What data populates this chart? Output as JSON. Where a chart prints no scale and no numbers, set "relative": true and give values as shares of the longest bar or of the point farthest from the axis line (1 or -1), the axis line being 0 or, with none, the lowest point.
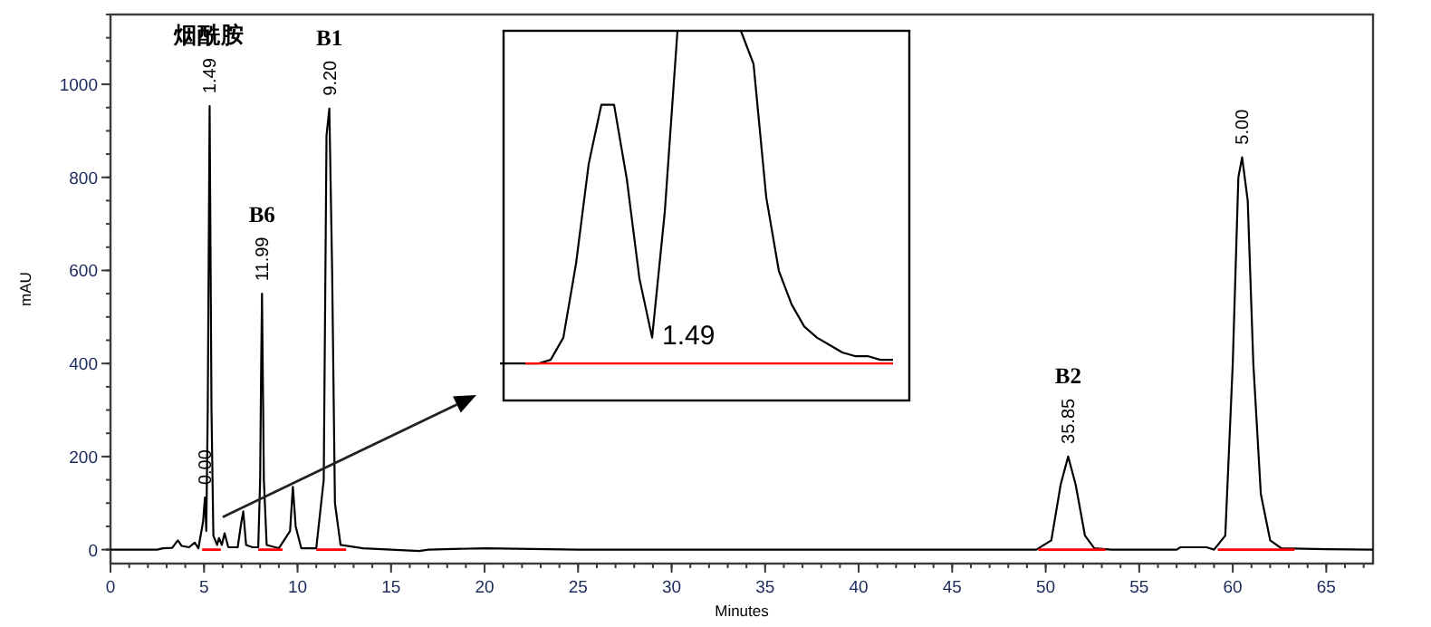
{
  "chart_data": [
    {
      "type": "line",
      "xlabel": "Minutes",
      "ylabel": "mAU",
      "xlim": [
        0,
        67.5
      ],
      "ylim": [
        -30,
        1150
      ],
      "xticks": [
        0,
        5,
        10,
        15,
        20,
        25,
        30,
        35,
        40,
        45,
        50,
        55,
        60,
        65
      ],
      "yticks": [
        0,
        200,
        400,
        600,
        800,
        1000
      ],
      "grid": false,
      "series": [
        {
          "color": "#000000",
          "x": [
            0,
            2.5,
            2.8,
            3.3,
            3.6,
            3.8,
            4.2,
            4.5,
            4.7,
            4.95,
            5.05,
            5.12,
            5.2,
            5.3,
            5.4,
            5.5,
            5.7,
            5.8,
            5.95,
            6.1,
            6.3,
            6.8,
            7.0,
            7.1,
            7.25,
            7.6,
            7.9,
            8.0,
            8.05,
            8.1,
            8.2,
            8.35,
            9.0,
            9.6,
            9.75,
            9.9,
            10.2,
            11.0,
            11.4,
            11.55,
            11.7,
            11.85,
            12.0,
            12.3,
            13.5,
            16.5,
            17,
            20,
            25,
            40,
            49.5,
            50.3,
            50.8,
            51.2,
            51.6,
            52.1,
            52.6,
            53.5,
            57,
            57.2,
            58.6,
            59,
            59.6,
            60,
            60.3,
            60.5,
            60.8,
            61.1,
            61.5,
            62,
            62.6,
            65,
            67.5
          ],
          "values": [
            0,
            0,
            3,
            4,
            20,
            8,
            5,
            15,
            3,
            60,
            112,
            40,
            300,
            953,
            300,
            30,
            10,
            25,
            10,
            35,
            5,
            5,
            60,
            82,
            10,
            5,
            5,
            150,
            370,
            550,
            150,
            10,
            3,
            40,
            135,
            50,
            3,
            3,
            150,
            890,
            948,
            600,
            100,
            10,
            3,
            -3,
            0,
            3,
            0,
            0,
            0,
            20,
            140,
            200,
            140,
            30,
            3,
            0,
            0,
            5,
            5,
            0,
            30,
            400,
            800,
            843,
            750,
            400,
            120,
            20,
            3,
            1,
            0
          ]
        },
        {
          "color": "#ff0000",
          "x": [
            4.9,
            5.9,
            6,
            7.9,
            9.2,
            9.3,
            11.0,
            12.6,
            12.7,
            49.6,
            53.2,
            53.3,
            59.2,
            63.3
          ],
          "values": [
            0,
            0,
            null,
            0,
            0,
            null,
            0,
            0,
            null,
            0,
            0,
            null,
            0,
            0
          ]
        }
      ],
      "annotations": [
        {
          "text": "烟酰胺",
          "x": 5.3,
          "y": 953
        },
        {
          "text": "B1",
          "x": 11.7,
          "y": 948
        },
        {
          "text": "B6",
          "x": 8.1,
          "y": 550
        },
        {
          "text": "B2",
          "x": 51.2,
          "y": 200
        },
        {
          "text": "0.00",
          "x": 5.05,
          "y": 112
        },
        {
          "text": "1.49",
          "x": 5.3,
          "y": 953
        },
        {
          "text": "11.99",
          "x": 8.1,
          "y": 550
        },
        {
          "text": "9.20",
          "x": 11.7,
          "y": 948
        },
        {
          "text": "35.85",
          "x": 51.2,
          "y": 200
        },
        {
          "text": "5.00",
          "x": 60.5,
          "y": 843
        }
      ]
    },
    {
      "type": "line",
      "relative": true,
      "categories": [
        null,
        null,
        null,
        null,
        null,
        null,
        null,
        null,
        null,
        null,
        null,
        null,
        null,
        null,
        null,
        null,
        null,
        null,
        null,
        null,
        null,
        null,
        null,
        null,
        null,
        null,
        null,
        null,
        null,
        null,
        null,
        null
      ],
      "series": [
        {
          "color": "#000000",
          "values": [
            0.1,
            0.1,
            0.1,
            0.1,
            0.11,
            0.17,
            0.37,
            0.64,
            0.8,
            0.8,
            0.6,
            0.33,
            0.17,
            0.51,
            1,
            1,
            1,
            1,
            1,
            1,
            0.91,
            0.55,
            0.35,
            0.26,
            0.2,
            0.17,
            0.15,
            0.13,
            0.12,
            0.12,
            0.11,
            0.11
          ]
        },
        {
          "color": "#ff0000",
          "values": [
            null,
            null,
            0.1,
            0.1,
            0.1,
            0.1,
            0.1,
            0.1,
            0.1,
            0.1,
            0.1,
            0.1,
            0.1,
            0.1,
            0.1,
            0.1,
            0.1,
            0.1,
            0.1,
            0.1,
            0.1,
            0.1,
            0.1,
            0.1,
            0.1,
            0.1,
            0.1,
            0.1,
            0.1,
            0.1,
            0.1,
            0.1
          ]
        }
      ],
      "annotations": [
        "1.49"
      ]
    }
  ]
}
